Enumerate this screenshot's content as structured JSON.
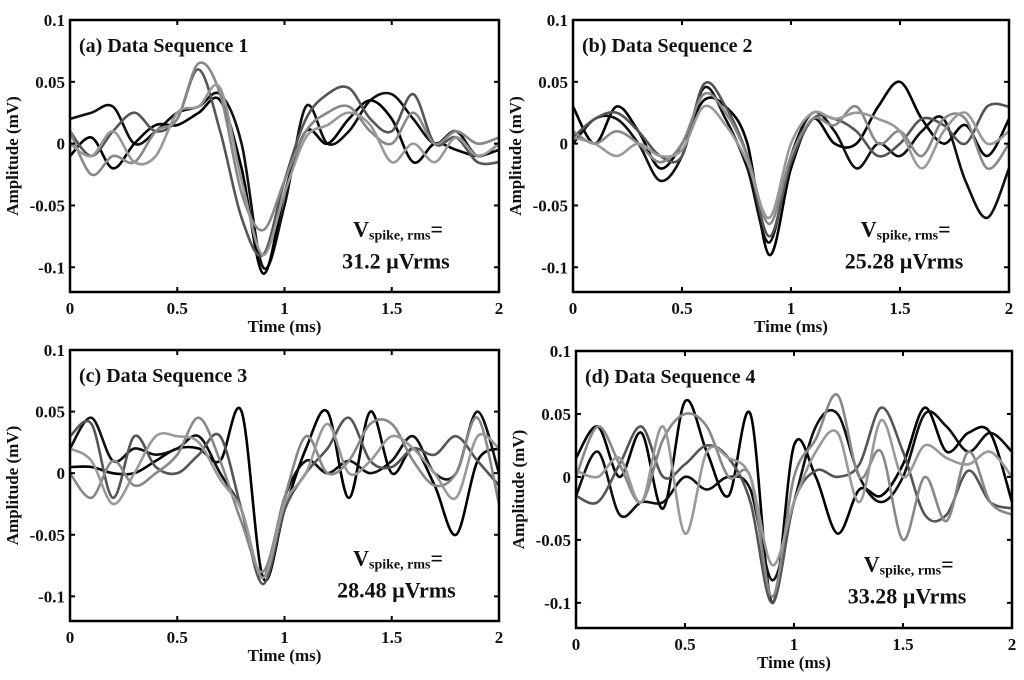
{
  "chart_data": [
    {
      "type": "line",
      "title": "(a) Data Sequence 1",
      "xlabel": "Time (ms)",
      "ylabel": "Amplitude (mV)",
      "xlim": [
        0,
        2
      ],
      "ylim": [
        -0.12,
        0.1
      ],
      "xticks": [
        "0",
        "0.5",
        "1",
        "1.5",
        "2"
      ],
      "yticks": [
        "0.1",
        "0.05",
        "0",
        "-0.05",
        "-0.1"
      ],
      "annotation": {
        "line1_main": "V",
        "line1_sub": "spike, rms",
        "line1_eq": "=",
        "line2": "31.2 µVrms"
      },
      "x_step": 0.1,
      "series": [
        {
          "color": "#111111",
          "values": [
            0.02,
            0.025,
            0.03,
            0.0,
            0.01,
            0.025,
            0.03,
            0.04,
            0.0,
            -0.1,
            -0.05,
            0.03,
            0.0,
            0.01,
            0.035,
            0.04,
            0.02,
            0.0,
            0.01,
            -0.01,
            0.0
          ]
        },
        {
          "color": "#000000",
          "values": [
            -0.01,
            0.005,
            -0.02,
            0.0,
            0.015,
            0.015,
            0.025,
            0.035,
            -0.02,
            -0.105,
            -0.04,
            0.01,
            0.0,
            0.02,
            0.035,
            0.02,
            -0.015,
            0.0,
            -0.005,
            -0.01,
            -0.005
          ]
        },
        {
          "color": "#555555",
          "values": [
            0.01,
            -0.01,
            0.01,
            0.025,
            0.01,
            0.02,
            0.06,
            0.01,
            -0.06,
            -0.09,
            -0.03,
            0.02,
            0.04,
            0.045,
            0.02,
            0.01,
            0.04,
            0.0,
            0.005,
            -0.015,
            -0.015
          ]
        },
        {
          "color": "#888888",
          "values": [
            0.01,
            -0.025,
            -0.01,
            -0.015,
            0.01,
            0.02,
            0.065,
            0.04,
            -0.04,
            -0.07,
            -0.03,
            0.01,
            0.025,
            0.03,
            0.01,
            0.0,
            0.025,
            0.0,
            0.01,
            0.0,
            0.005
          ]
        },
        {
          "color": "#999999",
          "values": [
            0.0,
            -0.01,
            0.01,
            -0.015,
            -0.01,
            0.025,
            0.03,
            0.045,
            -0.03,
            -0.09,
            -0.04,
            0.005,
            0.015,
            0.025,
            0.015,
            -0.015,
            0.0,
            -0.015,
            0.005,
            -0.01,
            0.0
          ]
        }
      ]
    },
    {
      "type": "line",
      "title": "(b) Data Sequence 2",
      "xlabel": "Time (ms)",
      "ylabel": "Amplitude (mV)",
      "xlim": [
        0,
        2
      ],
      "ylim": [
        -0.12,
        0.1
      ],
      "xticks": [
        "0",
        "0.5",
        "1",
        "1.5",
        "2"
      ],
      "yticks": [
        "0.1",
        "0.05",
        "0",
        "-0.05",
        "-0.1"
      ],
      "annotation": {
        "line1_main": "V",
        "line1_sub": "spike, rms",
        "line1_eq": "=",
        "line2": "25.28 µVrms"
      },
      "x_step": 0.1,
      "series": [
        {
          "color": "#000000",
          "values": [
            0.03,
            0.0,
            0.03,
            0.01,
            -0.02,
            0.0,
            0.035,
            0.03,
            0.0,
            -0.09,
            -0.02,
            0.02,
            0.0,
            0.0,
            0.03,
            0.05,
            0.02,
            0.0,
            0.015,
            -0.01,
            0.02
          ]
        },
        {
          "color": "#111111",
          "values": [
            0.0,
            0.02,
            0.02,
            0.0,
            -0.03,
            -0.01,
            0.045,
            0.02,
            -0.02,
            -0.08,
            -0.01,
            0.025,
            0.01,
            -0.02,
            0.0,
            -0.01,
            0.01,
            0.02,
            -0.03,
            -0.06,
            -0.02
          ]
        },
        {
          "color": "#555555",
          "values": [
            0.005,
            0.02,
            0.025,
            0.01,
            -0.01,
            -0.01,
            0.048,
            0.03,
            -0.01,
            -0.075,
            -0.015,
            0.02,
            0.02,
            0.01,
            -0.01,
            0.0,
            0.02,
            0.015,
            0.0,
            0.03,
            0.03
          ]
        },
        {
          "color": "#888888",
          "values": [
            0.01,
            0.0,
            0.01,
            0.0,
            -0.015,
            0.0,
            0.04,
            0.025,
            -0.01,
            -0.065,
            -0.01,
            0.02,
            0.015,
            0.03,
            0.0,
            0.01,
            -0.01,
            0.02,
            0.02,
            -0.02,
            0.0
          ]
        },
        {
          "color": "#999999",
          "values": [
            0.005,
            0.0,
            -0.01,
            0.0,
            -0.01,
            -0.005,
            0.03,
            0.015,
            -0.015,
            -0.06,
            0.0,
            0.025,
            0.02,
            0.025,
            0.02,
            0.01,
            -0.02,
            0.01,
            0.025,
            0.0,
            0.01
          ]
        }
      ]
    },
    {
      "type": "line",
      "title": "(c) Data Sequence 3",
      "xlabel": "Time (ms)",
      "ylabel": "Amplitude (mV)",
      "xlim": [
        0,
        2
      ],
      "ylim": [
        -0.12,
        0.1
      ],
      "xticks": [
        "0",
        "0.5",
        "1",
        "1.5",
        "2"
      ],
      "yticks": [
        "0.1",
        "0.05",
        "0",
        "-0.05",
        "-0.1"
      ],
      "annotation": {
        "line1_main": "V",
        "line1_sub": "spike, rms",
        "line1_eq": "=",
        "line2": "28.48 µVrms"
      },
      "x_step": 0.1,
      "series": [
        {
          "color": "#000000",
          "values": [
            0.005,
            0.005,
            0.0,
            0.0,
            0.01,
            0.02,
            0.02,
            0.01,
            0.05,
            -0.085,
            -0.03,
            0.02,
            0.05,
            -0.02,
            0.05,
            0.0,
            0.02,
            -0.01,
            -0.05,
            0.01,
            0.02
          ]
        },
        {
          "color": "#111111",
          "values": [
            0.02,
            0.045,
            0.01,
            0.02,
            0.015,
            0.02,
            0.03,
            0.0,
            -0.03,
            -0.085,
            -0.02,
            0.01,
            0.0,
            0.01,
            0.0,
            0.01,
            0.03,
            0.0,
            0.0,
            0.05,
            0.0
          ]
        },
        {
          "color": "#555555",
          "values": [
            0.03,
            0.04,
            -0.02,
            0.03,
            0.005,
            0.0,
            0.015,
            0.03,
            -0.03,
            -0.09,
            -0.03,
            0.0,
            0.02,
            0.045,
            0.01,
            0.005,
            0.02,
            0.015,
            0.03,
            0.01,
            -0.01
          ]
        },
        {
          "color": "#888888",
          "values": [
            0.0,
            -0.02,
            0.01,
            -0.01,
            0.0,
            0.015,
            0.045,
            0.01,
            -0.04,
            -0.08,
            -0.02,
            0.03,
            0.0,
            0.01,
            0.04,
            0.04,
            0.01,
            -0.01,
            0.0,
            0.045,
            -0.025
          ]
        },
        {
          "color": "#999999",
          "values": [
            0.02,
            0.01,
            -0.025,
            0.0,
            0.03,
            0.03,
            0.025,
            -0.005,
            -0.03,
            -0.085,
            -0.025,
            0.0,
            0.04,
            0.0,
            0.01,
            0.03,
            0.02,
            0.0,
            -0.02,
            0.03,
            0.02
          ]
        }
      ]
    },
    {
      "type": "line",
      "title": "(d) Data Sequence 4",
      "xlabel": "Time (ms)",
      "ylabel": "Amplitude (mV)",
      "xlim": [
        0,
        2
      ],
      "ylim": [
        -0.12,
        0.1
      ],
      "xticks": [
        "0",
        "0.5",
        "1",
        "1.5",
        "2"
      ],
      "yticks": [
        "0.1",
        "0.05",
        "0",
        "-0.05",
        "-0.1"
      ],
      "annotation": {
        "line1_main": "V",
        "line1_sub": "spike, rms",
        "line1_eq": "=",
        "line2": "33.28 µVrms"
      },
      "x_step": 0.1,
      "series": [
        {
          "color": "#000000",
          "values": [
            0.015,
            0.04,
            0.0,
            0.035,
            -0.025,
            0.06,
            0.02,
            -0.015,
            0.05,
            -0.1,
            0.025,
            0.0,
            -0.045,
            -0.01,
            -0.015,
            0.01,
            0.055,
            0.02,
            0.035,
            0.035,
            -0.02
          ]
        },
        {
          "color": "#111111",
          "values": [
            -0.015,
            0.02,
            -0.03,
            -0.02,
            -0.02,
            0.0,
            -0.01,
            0.0,
            -0.01,
            -0.082,
            -0.02,
            0.04,
            0.05,
            0.0,
            -0.02,
            0.0,
            0.05,
            0.04,
            0.02,
            0.035,
            0.02
          ]
        },
        {
          "color": "#555555",
          "values": [
            -0.015,
            -0.02,
            0.01,
            0.04,
            0.0,
            0.01,
            0.025,
            0.015,
            -0.02,
            -0.1,
            -0.02,
            0.005,
            0.0,
            0.01,
            0.055,
            0.02,
            -0.03,
            -0.03,
            0.005,
            -0.02,
            -0.025
          ]
        },
        {
          "color": "#888888",
          "values": [
            0.0,
            0.04,
            0.01,
            -0.02,
            0.03,
            0.05,
            0.04,
            0.0,
            0.0,
            -0.095,
            0.0,
            0.03,
            0.065,
            0.0,
            0.02,
            -0.05,
            0.0,
            -0.035,
            0.02,
            -0.02,
            -0.03
          ]
        },
        {
          "color": "#999999",
          "values": [
            0.005,
            0.0,
            0.015,
            -0.02,
            0.04,
            -0.045,
            0.02,
            0.015,
            0.0,
            -0.07,
            -0.02,
            0.02,
            0.035,
            -0.02,
            0.045,
            0.0,
            0.025,
            0.015,
            0.01,
            0.02,
            0.0
          ]
        }
      ]
    }
  ]
}
